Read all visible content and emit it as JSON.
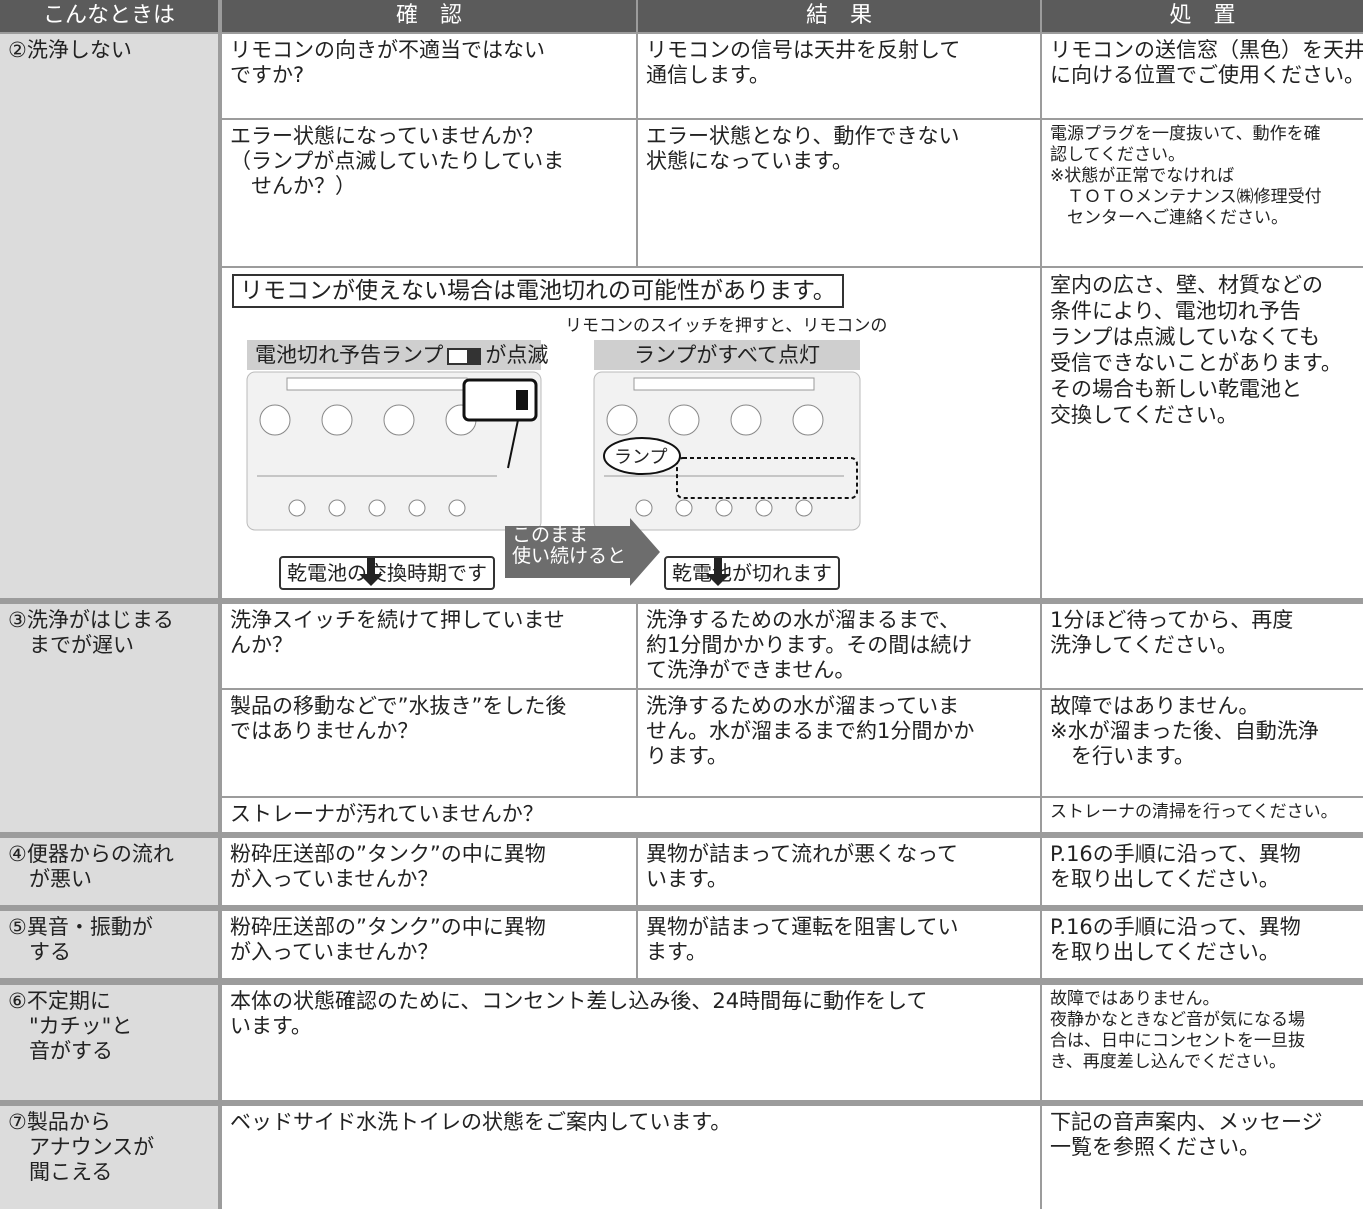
{
  "header": [
    "こんなときは",
    "確　認",
    "結　果",
    "処　置"
  ],
  "groups": [
    {
      "symptom": [
        "②洗浄しない"
      ],
      "items": [
        {
          "check": [
            "リモコンの向きが不適当ではない",
            "ですか?"
          ],
          "result": [
            "リモコンの信号は天井を反射して",
            "通信します。"
          ],
          "action": [
            "リモコンの送信窓（黒色）を天井",
            "に向ける位置でご使用ください。"
          ]
        },
        {
          "check": [
            "エラー状態になっていませんか？",
            "（ランプが点滅していたりしていま",
            "　せんか？）"
          ],
          "result": [
            "エラー状態となり、動作できない",
            "状態になっています。"
          ],
          "action": [
            "電源プラグを一度抜いて、動作を確",
            "認してください。",
            "※状態が正常でなければ",
            "　ＴＯＴＯメンテナンス㈱修理受付",
            "　センターへご連絡ください。"
          ]
        },
        {
          "notice": {
            "box": "リモコンが使えない場合は電池切れの可能性があります。",
            "caption": "リモコンのスイッチを押すと、リモコンの",
            "left_label": "電池切れ予告ランプ",
            "left_label_tail": "が点滅",
            "right_label": "ランプがすべて点灯",
            "bubble": "ランプ",
            "arrow_label": [
              "このまま",
              "使い続けると"
            ],
            "left_result": "乾電池の交換時期です",
            "right_result": "乾電池が切れます"
          },
          "action": [
            "室内の広さ、壁、材質などの",
            "条件により、電池切れ予告",
            "ランプは点滅していなくても",
            "受信できないことがあります。",
            "その場合も新しい乾電池と",
            "交換してください。"
          ]
        }
      ]
    },
    {
      "symptom": [
        "③洗浄がはじまる",
        "までが遅い"
      ],
      "items": [
        {
          "check": [
            "洗浄スイッチを続けて押していませ",
            "んか？"
          ],
          "result": [
            "洗浄するための水が溜まるまで、",
            "約1分間かかります。その間は続け",
            "て洗浄ができません。"
          ],
          "action": [
            "1分ほど待ってから、再度",
            "洗浄してください。"
          ]
        },
        {
          "check": [
            "製品の移動などで”水抜き”をした後",
            "ではありませんか？"
          ],
          "result": [
            "洗浄するための水が溜まっていま",
            "せん。水が溜まるまで約1分間かか",
            "ります。"
          ],
          "action": [
            "故障ではありません。",
            "※水が溜まった後、自動洗浄",
            "　を行います。"
          ]
        },
        {
          "check": [
            "ストレーナが汚れていませんか？"
          ],
          "action": [
            "ストレーナの清掃を行ってください。"
          ]
        }
      ]
    },
    {
      "symptom": [
        "④便器からの流れ",
        "が悪い"
      ],
      "items": [
        {
          "check": [
            "粉砕圧送部の”タンク”の中に異物",
            "が入っていませんか？"
          ],
          "result": [
            "異物が詰まって流れが悪くなって",
            "います。"
          ],
          "action": [
            "P.16の手順に沿って、異物",
            "を取り出してください。"
          ]
        }
      ]
    },
    {
      "symptom": [
        "⑤異音・振動が",
        "する"
      ],
      "items": [
        {
          "check": [
            "粉砕圧送部の”タンク”の中に異物",
            "が入っていませんか？"
          ],
          "result": [
            "異物が詰まって運転を阻害してい",
            "ます。"
          ],
          "action": [
            "P.16の手順に沿って、異物",
            "を取り出してください。"
          ]
        }
      ]
    },
    {
      "symptom": [
        "⑥不定期に",
        "\"カチッ\"と",
        "音がする"
      ],
      "items": [
        {
          "check": [
            "本体の状態確認のために、コンセント差し込み後、24時間毎に動作をして",
            "います。"
          ],
          "action": [
            "故障ではありません。",
            "夜静かなときなど音が気になる場",
            "合は、日中にコンセントを一旦抜",
            "き、再度差し込んでください。"
          ]
        }
      ]
    },
    {
      "symptom": [
        "⑦製品から",
        "アナウンスが",
        "聞こえる"
      ],
      "items": [
        {
          "check": [
            "ベッドサイド水洗トイレの状態をご案内しています。"
          ],
          "action": [
            "下記の音声案内、メッセージ",
            "一覧を参照ください。"
          ]
        }
      ]
    }
  ]
}
